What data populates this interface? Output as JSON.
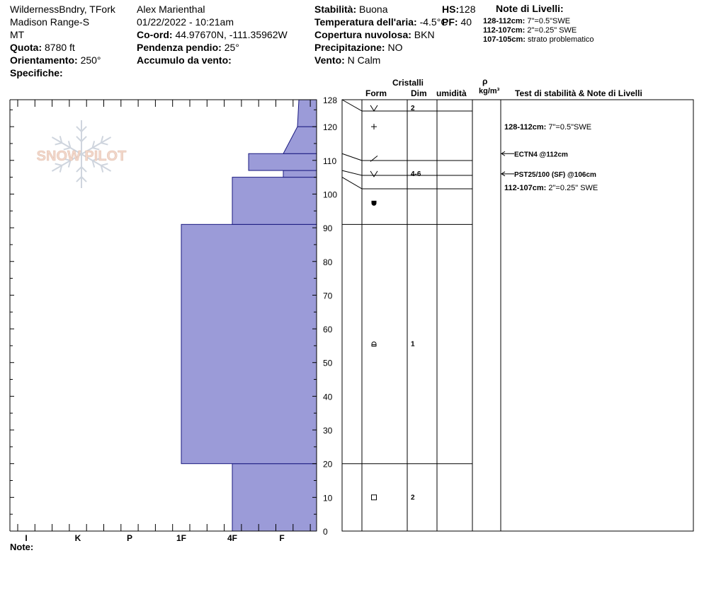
{
  "header": {
    "location": [
      "WildernessBndry, TFork",
      "Madison Range-S",
      "MT"
    ],
    "elevation_label": "Quota:",
    "elevation_value": "8780 ft",
    "aspect_label": "Orientamento:",
    "aspect_value": "250°",
    "specifics_label": "Specifiche:",
    "observer": "Alex Marienthal",
    "datetime": "01/22/2022 - 10:21am",
    "coord_label": "Co-ord:",
    "coord_value": "44.97670N, -111.35962W",
    "slope_label": "Pendenza pendio:",
    "slope_value": "25°",
    "wind_loading_label": "Accumulo da vento:",
    "stability_label": "Stabilità:",
    "stability_value": "Buona",
    "air_temp_label": "Temperatura dell'aria:",
    "air_temp_value": "-4.5°C",
    "sky_label": "Copertura nuvolosa:",
    "sky_value": "BKN",
    "precip_label": "Precipitazione:",
    "precip_value": "NO",
    "wind_label": "Vento:",
    "wind_value": "N Calm",
    "hs_label": "HS:",
    "hs_value": "128",
    "pf_label": "PF:",
    "pf_value": "40"
  },
  "layer_notes": {
    "title": "Note di Livelli:",
    "items": [
      {
        "range": "128-112cm:",
        "text": "7\"=0.5\"SWE"
      },
      {
        "range": "112-107cm:",
        "text": "2\"=0.25\" SWE"
      },
      {
        "range": "107-105cm:",
        "text": "strato problematico"
      }
    ]
  },
  "column_headers": {
    "crystals": "Cristalli",
    "form": "Form",
    "size": "Dim",
    "moisture": "umidità",
    "rho": "ρ",
    "density": "kg/m³",
    "stability": "Test di stabilità & Note di Livelli"
  },
  "logo_text": "SNOW PILOT",
  "footer": {
    "note_label": "Note:"
  },
  "colors": {
    "fill": "#9b9bd8",
    "stroke": "#1a1a80",
    "line": "#000000",
    "logo": "#e8b8a0"
  },
  "chart_data": {
    "type": "bar",
    "orientation": "horizontal-step",
    "x_categories": [
      "I",
      "K",
      "P",
      "1F",
      "4F",
      "F"
    ],
    "x_note": "hardness, reversed axis (F at right edge)",
    "y_ticks": [
      0,
      10,
      20,
      30,
      40,
      50,
      60,
      70,
      80,
      90,
      100,
      110,
      120,
      128
    ],
    "ylim": [
      0,
      128
    ],
    "layers": [
      {
        "bottom": 0,
        "top": 20,
        "hardness": "4F"
      },
      {
        "bottom": 20,
        "top": 91,
        "hardness": "1F"
      },
      {
        "bottom": 91,
        "top": 105,
        "hardness": "4F"
      },
      {
        "bottom": 105,
        "top": 107,
        "hardness": "F+"
      },
      {
        "bottom": 107,
        "top": 112,
        "hardness": "4F-"
      },
      {
        "bottom": 112,
        "top": 120,
        "hardness": "F+ to F"
      },
      {
        "bottom": 120,
        "top": 128,
        "hardness": "F+"
      }
    ],
    "grains": [
      {
        "height": 125.5,
        "form": "V",
        "size": "2"
      },
      {
        "height": 120,
        "form": "+",
        "size": ""
      },
      {
        "height": 110.5,
        "form": "/",
        "size": ""
      },
      {
        "height": 106,
        "form": "V",
        "size": "4-6"
      },
      {
        "height": 97.5,
        "form": "round-filled",
        "size": ""
      },
      {
        "height": 55.5,
        "form": "round-facet",
        "size": "1"
      },
      {
        "height": 10,
        "form": "square",
        "size": "2"
      }
    ],
    "layer_lines": [
      128,
      112,
      107,
      105,
      91,
      20
    ],
    "stability_notes": [
      {
        "height": 120,
        "text": "128-112cm:",
        "value": "7\"=0.5\"SWE",
        "arrow": false
      },
      {
        "height": 112,
        "text": "ECTN4 @112cm",
        "arrow": true
      },
      {
        "height": 106,
        "text": "PST25/100 (SF) @106cm",
        "arrow": true
      },
      {
        "height": 102,
        "text": "112-107cm:",
        "value": "2\"=0.25\" SWE",
        "arrow": false
      }
    ]
  }
}
